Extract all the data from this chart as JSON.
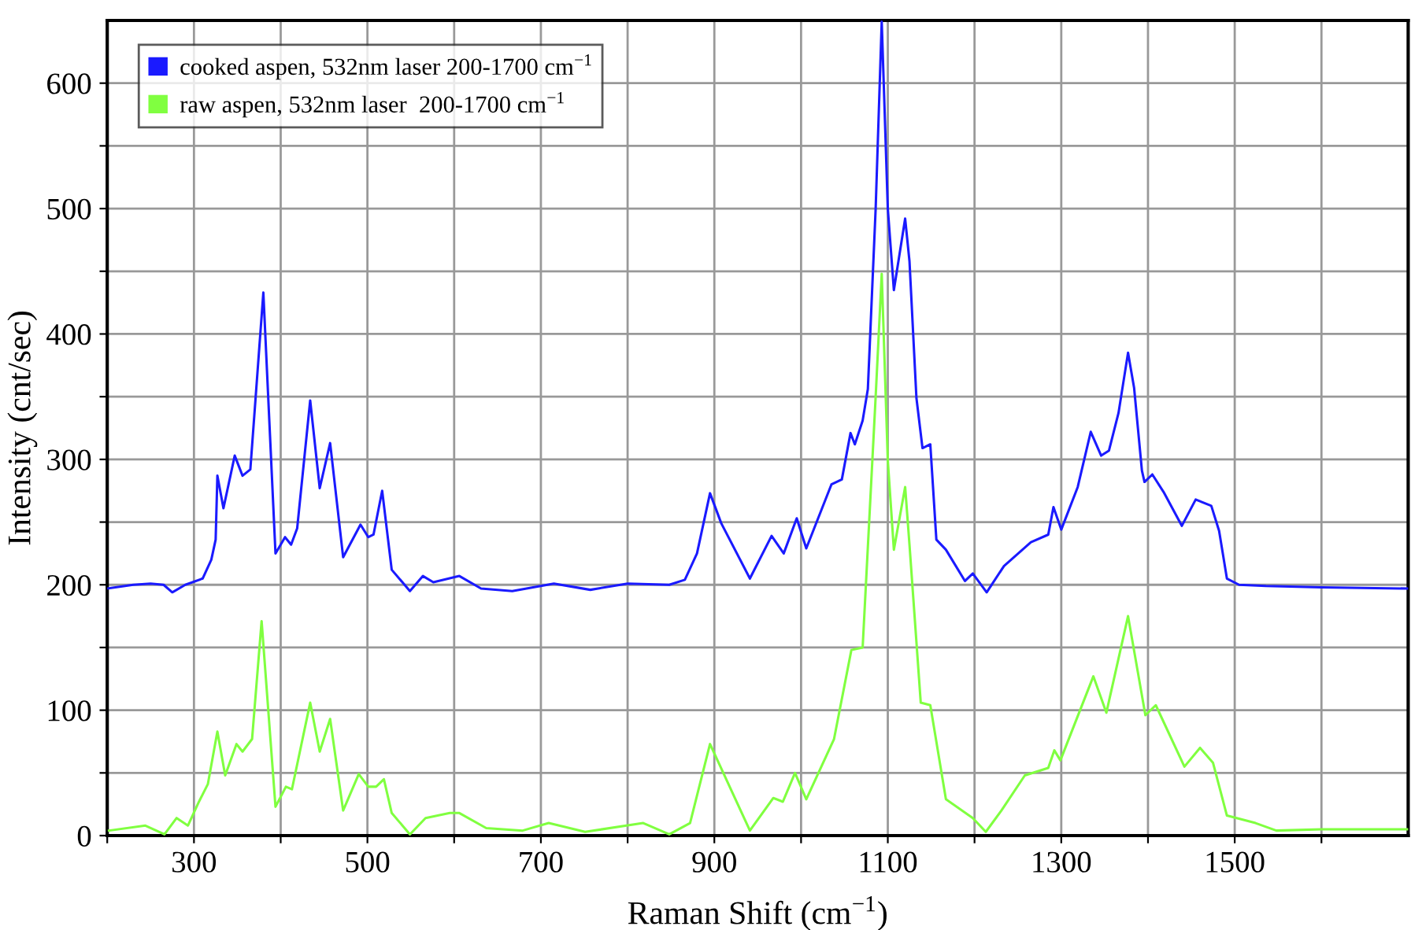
{
  "chart_data": {
    "type": "line",
    "xlabel": "Raman Shift (cm$^{−1}$)",
    "ylabel": "Intensity (cnt/sec)",
    "xlim": [
      200,
      1700
    ],
    "ylim": [
      0,
      650
    ],
    "xticks": [
      {
        "value": 200,
        "label": null
      },
      300,
      {
        "value": 400,
        "label": null
      },
      500,
      {
        "value": 600,
        "label": null
      },
      700,
      {
        "value": 800,
        "label": null
      },
      900,
      {
        "value": 1000,
        "label": null
      },
      1100,
      {
        "value": 1200,
        "label": null
      },
      1300,
      {
        "value": 1400,
        "label": null
      },
      1500,
      {
        "value": 1600,
        "label": null
      }
    ],
    "yticks": [
      0,
      {
        "value": 50,
        "label": null
      },
      100,
      {
        "value": 150,
        "label": null
      },
      200,
      {
        "value": 250,
        "label": null
      },
      300,
      {
        "value": 350,
        "label": null
      },
      400,
      {
        "value": 450,
        "label": null
      },
      500,
      {
        "value": 550,
        "label": null
      },
      600
    ],
    "grid": true,
    "legend": "top left",
    "marker": "none",
    "line_style": "solid",
    "series": [
      {
        "name": "cooked aspen, 532nm laser 200-1700 cm$^{−1}$",
        "color": "#1a1aff",
        "x": [
          200,
          230,
          250,
          265,
          275,
          290,
          310,
          320,
          325,
          327,
          334,
          347,
          356,
          365,
          380,
          394,
          405,
          412,
          419,
          434,
          445,
          457,
          472,
          492,
          501,
          507,
          517,
          528,
          549,
          564,
          576,
          606,
          631,
          667,
          715,
          757,
          800,
          848,
          866,
          880,
          895,
          908,
          941,
          966,
          980,
          995,
          1006,
          1035,
          1047,
          1057,
          1062,
          1071,
          1077,
          1086,
          1093,
          1100,
          1107,
          1120,
          1125,
          1133,
          1140,
          1149,
          1156,
          1167,
          1189,
          1198,
          1214,
          1234,
          1265,
          1285,
          1291,
          1300,
          1319,
          1334,
          1346,
          1355,
          1366,
          1377,
          1384,
          1393,
          1396,
          1405,
          1418,
          1439,
          1455,
          1473,
          1482,
          1491,
          1505,
          1536,
          1600,
          1700
        ],
        "values": [
          197,
          200,
          201,
          200,
          194,
          200,
          205,
          220,
          236,
          287,
          261,
          303,
          287,
          292,
          433,
          225,
          238,
          232,
          245,
          347,
          277,
          313,
          222,
          248,
          238,
          240,
          275,
          212,
          195,
          207,
          202,
          207,
          197,
          195,
          201,
          196,
          201,
          200,
          204,
          225,
          273,
          249,
          205,
          239,
          225,
          253,
          229,
          280,
          284,
          321,
          312,
          331,
          356,
          500,
          649,
          500,
          435,
          492,
          458,
          349,
          309,
          312,
          236,
          228,
          203,
          209,
          194,
          215,
          234,
          240,
          262,
          244,
          278,
          322,
          303,
          307,
          337,
          385,
          357,
          291,
          282,
          288,
          274,
          247,
          268,
          263,
          243,
          205,
          200,
          199,
          198,
          197
        ]
      },
      {
        "name": "raw aspen, 532nm laser  200-1700 cm$^{−1}$",
        "color": "#80ff40",
        "x": [
          202,
          244,
          266,
          280,
          293,
          305,
          316,
          327,
          336,
          349,
          356,
          367,
          378,
          394,
          406,
          413,
          434,
          445,
          457,
          472,
          490,
          501,
          510,
          519,
          528,
          549,
          567,
          595,
          606,
          637,
          679,
          709,
          751,
          818,
          848,
          872,
          895,
          941,
          968,
          979,
          993,
          1006,
          1038,
          1058,
          1071,
          1086,
          1093,
          1100,
          1107,
          1120,
          1125,
          1138,
          1149,
          1167,
          1198,
          1213,
          1231,
          1258,
          1285,
          1292,
          1299,
          1337,
          1352,
          1377,
          1397,
          1409,
          1442,
          1460,
          1475,
          1491,
          1524,
          1548,
          1600,
          1700
        ],
        "values": [
          4,
          8,
          1,
          14,
          8,
          26,
          41,
          83,
          48,
          73,
          67,
          77,
          171,
          23,
          39,
          37,
          106,
          67,
          93,
          20,
          49,
          39,
          39,
          45,
          18,
          1,
          14,
          18,
          18,
          6,
          4,
          10,
          3,
          10,
          1,
          10,
          73,
          4,
          30,
          27,
          50,
          29,
          77,
          148,
          150,
          350,
          448,
          299,
          228,
          278,
          232,
          106,
          104,
          29,
          14,
          3,
          20,
          48,
          54,
          68,
          60,
          127,
          98,
          175,
          96,
          104,
          55,
          70,
          58,
          16,
          10,
          4,
          5,
          5
        ]
      }
    ]
  }
}
